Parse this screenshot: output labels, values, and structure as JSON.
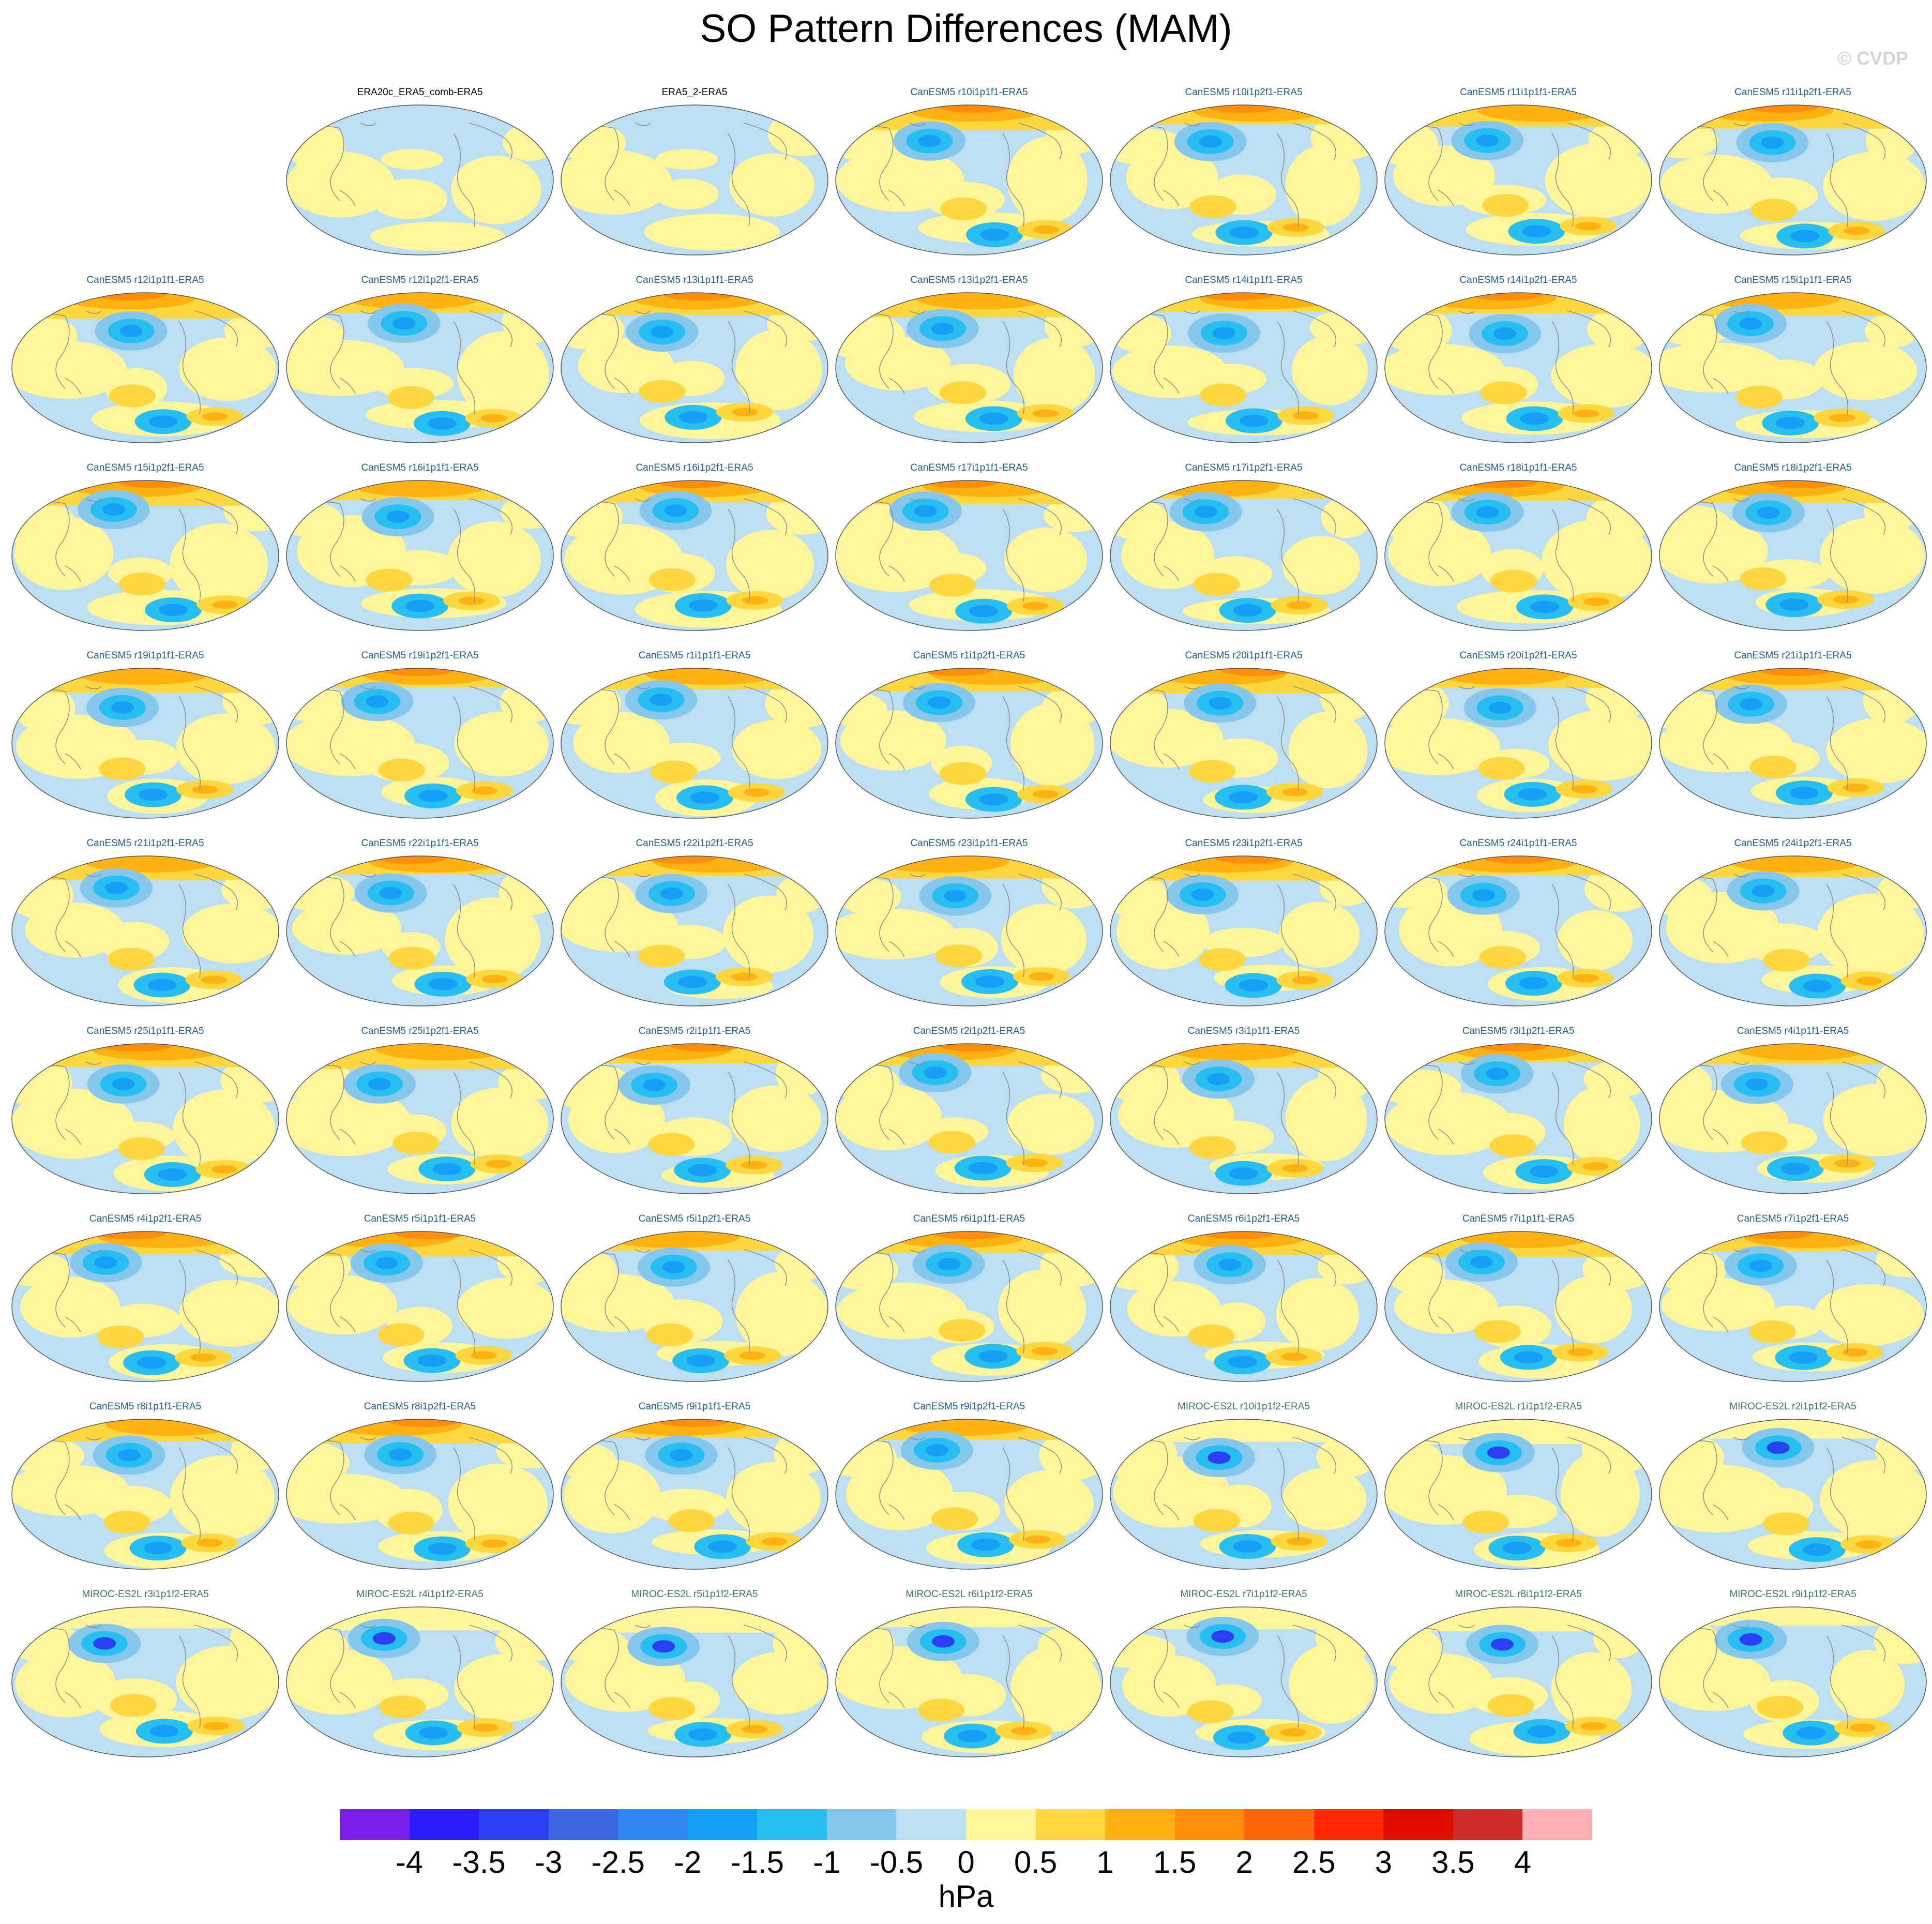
{
  "title": "SO Pattern Differences (MAM)",
  "credit": "© CVDP",
  "panels": [
    {
      "title": "ERA20c_ERA5_comb-ERA5",
      "group": "obs"
    },
    {
      "title": "ERA5_2-ERA5",
      "group": "obs"
    },
    {
      "title": "CanESM5 r10i1p1f1-ERA5",
      "group": "can"
    },
    {
      "title": "CanESM5 r10i1p2f1-ERA5",
      "group": "can"
    },
    {
      "title": "CanESM5 r11i1p1f1-ERA5",
      "group": "can"
    },
    {
      "title": "CanESM5 r11i1p2f1-ERA5",
      "group": "can"
    },
    {
      "title": "CanESM5 r12i1p1f1-ERA5",
      "group": "can"
    },
    {
      "title": "CanESM5 r12i1p2f1-ERA5",
      "group": "can"
    },
    {
      "title": "CanESM5 r13i1p1f1-ERA5",
      "group": "can"
    },
    {
      "title": "CanESM5 r13i1p2f1-ERA5",
      "group": "can"
    },
    {
      "title": "CanESM5 r14i1p1f1-ERA5",
      "group": "can"
    },
    {
      "title": "CanESM5 r14i1p2f1-ERA5",
      "group": "can"
    },
    {
      "title": "CanESM5 r15i1p1f1-ERA5",
      "group": "can"
    },
    {
      "title": "CanESM5 r15i1p2f1-ERA5",
      "group": "can"
    },
    {
      "title": "CanESM5 r16i1p1f1-ERA5",
      "group": "can"
    },
    {
      "title": "CanESM5 r16i1p2f1-ERA5",
      "group": "can"
    },
    {
      "title": "CanESM5 r17i1p1f1-ERA5",
      "group": "can"
    },
    {
      "title": "CanESM5 r17i1p2f1-ERA5",
      "group": "can"
    },
    {
      "title": "CanESM5 r18i1p1f1-ERA5",
      "group": "can"
    },
    {
      "title": "CanESM5 r18i1p2f1-ERA5",
      "group": "can"
    },
    {
      "title": "CanESM5 r19i1p1f1-ERA5",
      "group": "can"
    },
    {
      "title": "CanESM5 r19i1p2f1-ERA5",
      "group": "can"
    },
    {
      "title": "CanESM5 r1i1p1f1-ERA5",
      "group": "can"
    },
    {
      "title": "CanESM5 r1i1p2f1-ERA5",
      "group": "can"
    },
    {
      "title": "CanESM5 r20i1p1f1-ERA5",
      "group": "can"
    },
    {
      "title": "CanESM5 r20i1p2f1-ERA5",
      "group": "can"
    },
    {
      "title": "CanESM5 r21i1p1f1-ERA5",
      "group": "can"
    },
    {
      "title": "CanESM5 r21i1p2f1-ERA5",
      "group": "can"
    },
    {
      "title": "CanESM5 r22i1p1f1-ERA5",
      "group": "can"
    },
    {
      "title": "CanESM5 r22i1p2f1-ERA5",
      "group": "can"
    },
    {
      "title": "CanESM5 r23i1p1f1-ERA5",
      "group": "can"
    },
    {
      "title": "CanESM5 r23i1p2f1-ERA5",
      "group": "can"
    },
    {
      "title": "CanESM5 r24i1p1f1-ERA5",
      "group": "can"
    },
    {
      "title": "CanESM5 r24i1p2f1-ERA5",
      "group": "can"
    },
    {
      "title": "CanESM5 r25i1p1f1-ERA5",
      "group": "can"
    },
    {
      "title": "CanESM5 r25i1p2f1-ERA5",
      "group": "can"
    },
    {
      "title": "CanESM5 r2i1p1f1-ERA5",
      "group": "can"
    },
    {
      "title": "CanESM5 r2i1p2f1-ERA5",
      "group": "can"
    },
    {
      "title": "CanESM5 r3i1p1f1-ERA5",
      "group": "can"
    },
    {
      "title": "CanESM5 r3i1p2f1-ERA5",
      "group": "can"
    },
    {
      "title": "CanESM5 r4i1p1f1-ERA5",
      "group": "can"
    },
    {
      "title": "CanESM5 r4i1p2f1-ERA5",
      "group": "can"
    },
    {
      "title": "CanESM5 r5i1p1f1-ERA5",
      "group": "can"
    },
    {
      "title": "CanESM5 r5i1p2f1-ERA5",
      "group": "can"
    },
    {
      "title": "CanESM5 r6i1p1f1-ERA5",
      "group": "can"
    },
    {
      "title": "CanESM5 r6i1p2f1-ERA5",
      "group": "can"
    },
    {
      "title": "CanESM5 r7i1p1f1-ERA5",
      "group": "can"
    },
    {
      "title": "CanESM5 r7i1p2f1-ERA5",
      "group": "can"
    },
    {
      "title": "CanESM5 r8i1p1f1-ERA5",
      "group": "can"
    },
    {
      "title": "CanESM5 r8i1p2f1-ERA5",
      "group": "can"
    },
    {
      "title": "CanESM5 r9i1p1f1-ERA5",
      "group": "can"
    },
    {
      "title": "CanESM5 r9i1p2f1-ERA5",
      "group": "can"
    },
    {
      "title": "MIROC-ES2L r10i1p1f2-ERA5",
      "group": "mir"
    },
    {
      "title": "MIROC-ES2L r1i1p1f2-ERA5",
      "group": "mir"
    },
    {
      "title": "MIROC-ES2L r2i1p1f2-ERA5",
      "group": "mir"
    },
    {
      "title": "MIROC-ES2L r3i1p1f2-ERA5",
      "group": "mir"
    },
    {
      "title": "MIROC-ES2L r4i1p1f2-ERA5",
      "group": "mir"
    },
    {
      "title": "MIROC-ES2L r5i1p1f2-ERA5",
      "group": "mir"
    },
    {
      "title": "MIROC-ES2L r6i1p1f2-ERA5",
      "group": "mir"
    },
    {
      "title": "MIROC-ES2L r7i1p1f2-ERA5",
      "group": "mir"
    },
    {
      "title": "MIROC-ES2L r8i1p1f2-ERA5",
      "group": "mir"
    },
    {
      "title": "MIROC-ES2L r9i1p1f2-ERA5",
      "group": "mir"
    }
  ],
  "colorbar": {
    "colors": [
      "#7a1fe8",
      "#2a1aff",
      "#2b3ef2",
      "#3b66e0",
      "#2e86f0",
      "#16a0f5",
      "#27bff2",
      "#86c8ec",
      "#bcdff2",
      "#fff59a",
      "#ffd840",
      "#ffb212",
      "#ff8e0c",
      "#ff6408",
      "#ff2a05",
      "#e00e00",
      "#d02a2a",
      "#ffb0b4"
    ],
    "labels": [
      "-4",
      "-3.5",
      "-3",
      "-2.5",
      "-2",
      "-1.5",
      "-1",
      "-0.5",
      "0",
      "0.5",
      "1",
      "1.5",
      "2",
      "2.5",
      "3",
      "3.5",
      "4"
    ],
    "units": "hPa"
  }
}
